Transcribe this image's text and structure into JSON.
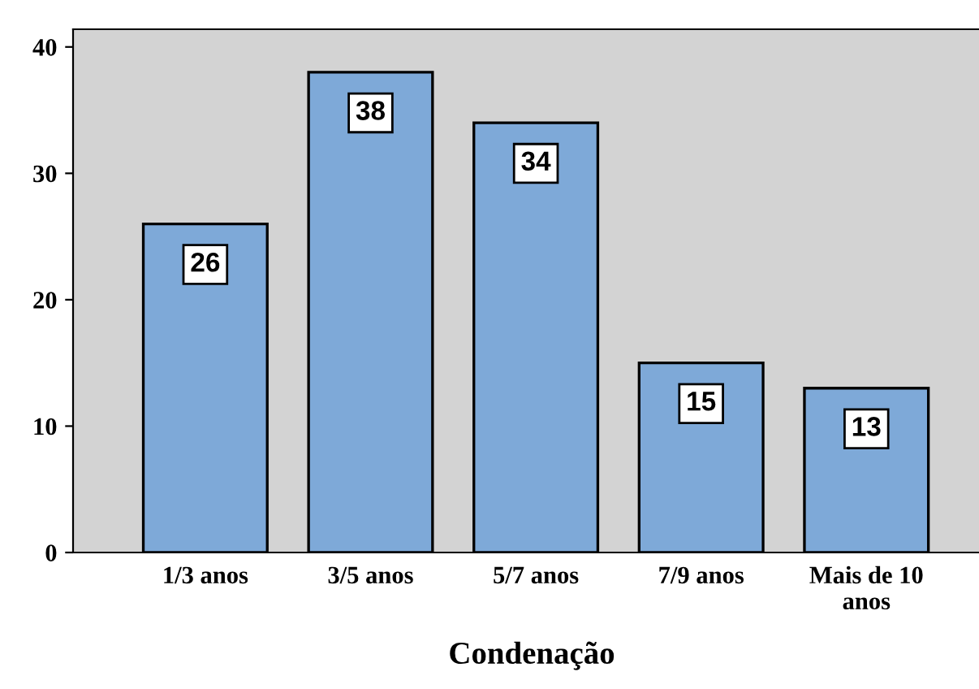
{
  "chart_data": {
    "type": "bar",
    "xlabel": "Condenação",
    "categories": [
      "1/3 anos",
      "3/5 anos",
      "5/7 anos",
      "7/9 anos",
      "Mais de 10\nanos"
    ],
    "values": [
      26,
      38,
      34,
      15,
      13
    ],
    "color": "#7ea9d8",
    "ylim": [
      0,
      41.4
    ],
    "yticks": [
      0,
      10,
      20,
      30,
      40
    ],
    "grid": false,
    "data_labels": true
  }
}
